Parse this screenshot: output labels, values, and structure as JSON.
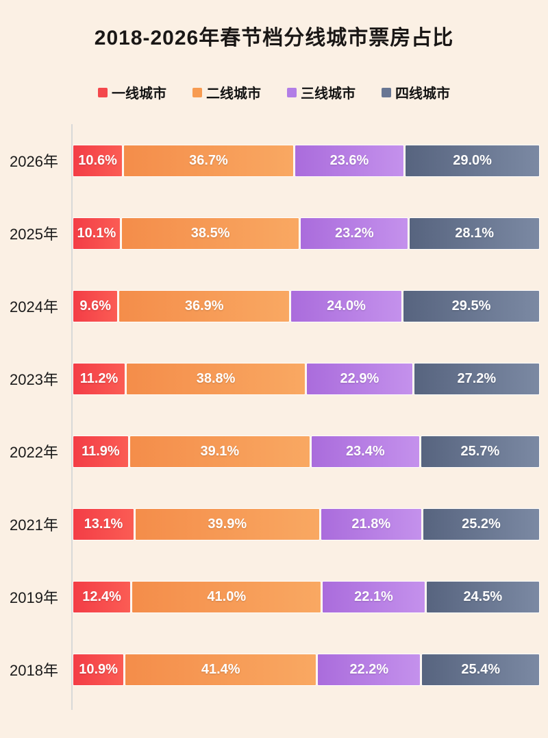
{
  "title": "2018-2026年春节档分线城市票房占比",
  "legend": [
    {
      "label": "一线城市",
      "color": "#f4484c"
    },
    {
      "label": "二线城市",
      "color": "#f79b51"
    },
    {
      "label": "三线城市",
      "color": "#b27ee6"
    },
    {
      "label": "四线城市",
      "color": "#687693"
    }
  ],
  "colors": {
    "background": "#fbf0e4",
    "axis_line": "#d8d8d8",
    "title_text": "#1a1716",
    "bar_label_text": "#ffffff",
    "series_gradients": [
      [
        "#f33d46",
        "#fb5c54"
      ],
      [
        "#f48d4a",
        "#f9a862"
      ],
      [
        "#aa6cdc",
        "#c491ec"
      ],
      [
        "#57647f",
        "#7b89a3"
      ]
    ]
  },
  "chart_data": {
    "type": "bar",
    "subtype": "stacked-horizontal-100pct",
    "title": "2018-2026年春节档分线城市票房占比",
    "unit": "%",
    "value_format": "one-decimal-percent",
    "grid": false,
    "legend_position": "top-center",
    "categories": [
      "2026年",
      "2025年",
      "2024年",
      "2023年",
      "2022年",
      "2021年",
      "2019年",
      "2018年"
    ],
    "series": [
      {
        "name": "一线城市",
        "values": [
          10.6,
          10.1,
          9.6,
          11.2,
          11.9,
          13.1,
          12.4,
          10.9
        ]
      },
      {
        "name": "二线城市",
        "values": [
          36.7,
          38.5,
          36.9,
          38.8,
          39.1,
          39.9,
          41.0,
          41.4
        ]
      },
      {
        "name": "三线城市",
        "values": [
          23.6,
          23.2,
          24.0,
          22.9,
          23.4,
          21.8,
          22.1,
          22.2
        ]
      },
      {
        "name": "四线城市",
        "values": [
          29.0,
          28.1,
          29.5,
          27.2,
          25.7,
          25.2,
          24.5,
          25.4
        ]
      }
    ],
    "xlim": [
      0,
      100
    ],
    "xlabel": "",
    "ylabel": ""
  }
}
